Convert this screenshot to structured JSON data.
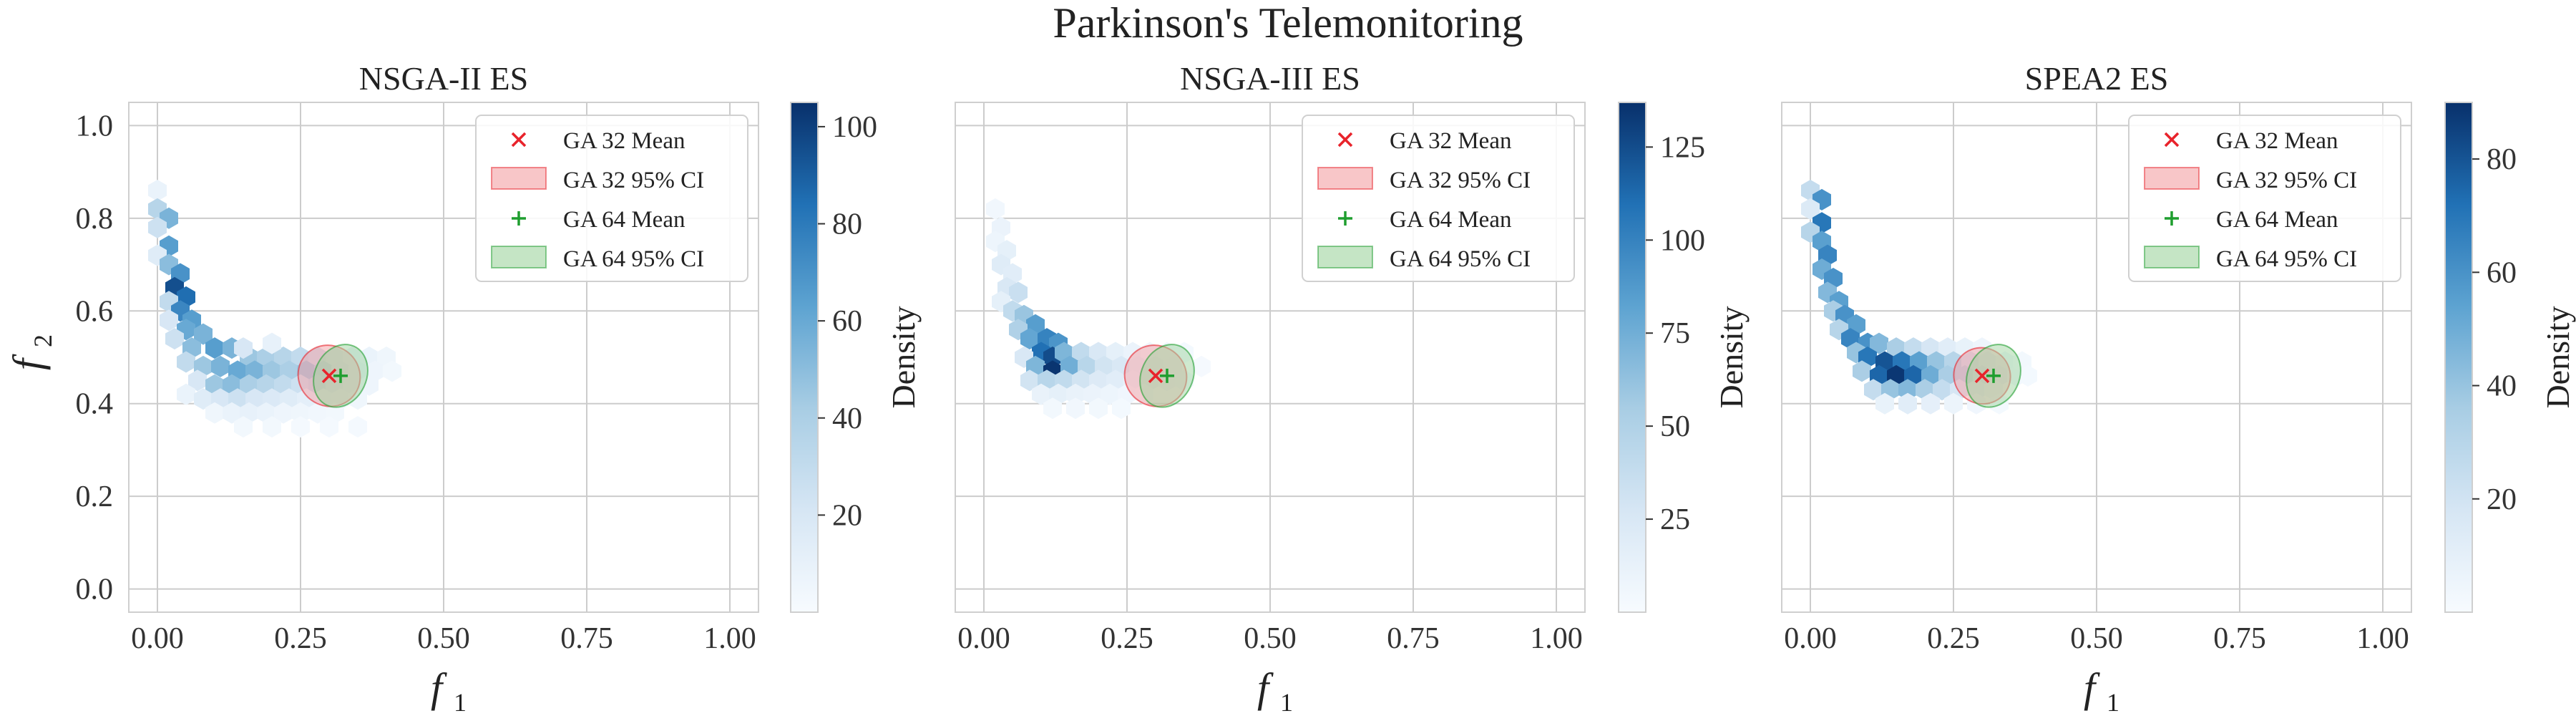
{
  "figure_title": "Parkinson's Telemonitoring",
  "colors": {
    "ga32": "#e8232b",
    "ga32_fill": "#f4a0a3",
    "ga64": "#1f9e2f",
    "ga64_fill": "#9fd39f",
    "cmap_low": "#f3f8fd",
    "cmap_high": "#0a2f6b",
    "grid": "#cccccc"
  },
  "chart_data": [
    {
      "type": "hexbin",
      "title": "NSGA-II ES",
      "xlabel": "f",
      "xlabel_sub": "1",
      "ylabel": "f",
      "ylabel_sub": "2",
      "xlim": [
        -0.05,
        1.05
      ],
      "ylim": [
        -0.05,
        1.05
      ],
      "xticks": [
        "0.00",
        "0.25",
        "0.50",
        "0.75",
        "1.00"
      ],
      "yticks": [
        "0.0",
        "0.2",
        "0.4",
        "0.6",
        "0.8",
        "1.0"
      ],
      "grid": true,
      "colorbar": {
        "label": "Density",
        "min": 0,
        "max": 105,
        "ticks": [
          "20",
          "40",
          "60",
          "80",
          "100"
        ]
      },
      "legend": {
        "position": "top-right",
        "entries": [
          "GA 32 Mean",
          "GA 32 95% CI",
          "GA 64 Mean",
          "GA 64 95% CI"
        ]
      },
      "ga32_mean": [
        0.3,
        0.46
      ],
      "ga64_mean": [
        0.32,
        0.46
      ],
      "ga32_ci": {
        "rx": 0.055,
        "ry": 0.065,
        "angle": 35
      },
      "ga64_ci": {
        "rx": 0.045,
        "ry": 0.07,
        "angle": 25
      },
      "hexbins": [
        [
          0.0,
          0.86,
          8
        ],
        [
          0.0,
          0.82,
          35
        ],
        [
          0.02,
          0.8,
          55
        ],
        [
          0.0,
          0.78,
          25
        ],
        [
          0.02,
          0.74,
          65
        ],
        [
          0.0,
          0.72,
          15
        ],
        [
          0.02,
          0.7,
          50
        ],
        [
          0.04,
          0.68,
          70
        ],
        [
          0.03,
          0.65,
          95
        ],
        [
          0.05,
          0.63,
          85
        ],
        [
          0.02,
          0.62,
          30
        ],
        [
          0.04,
          0.6,
          75
        ],
        [
          0.06,
          0.58,
          65
        ],
        [
          0.02,
          0.58,
          20
        ],
        [
          0.05,
          0.56,
          60
        ],
        [
          0.08,
          0.55,
          55
        ],
        [
          0.03,
          0.54,
          25
        ],
        [
          0.06,
          0.52,
          50
        ],
        [
          0.1,
          0.52,
          65
        ],
        [
          0.13,
          0.52,
          55
        ],
        [
          0.16,
          0.5,
          45
        ],
        [
          0.19,
          0.5,
          40
        ],
        [
          0.22,
          0.5,
          35
        ],
        [
          0.25,
          0.5,
          30
        ],
        [
          0.28,
          0.5,
          25
        ],
        [
          0.31,
          0.5,
          18
        ],
        [
          0.34,
          0.5,
          12
        ],
        [
          0.37,
          0.5,
          8
        ],
        [
          0.4,
          0.5,
          5
        ],
        [
          0.05,
          0.49,
          30
        ],
        [
          0.08,
          0.48,
          45
        ],
        [
          0.11,
          0.48,
          55
        ],
        [
          0.14,
          0.47,
          60
        ],
        [
          0.17,
          0.47,
          55
        ],
        [
          0.2,
          0.47,
          45
        ],
        [
          0.23,
          0.47,
          40
        ],
        [
          0.26,
          0.47,
          45
        ],
        [
          0.29,
          0.47,
          35
        ],
        [
          0.32,
          0.47,
          20
        ],
        [
          0.35,
          0.47,
          12
        ],
        [
          0.38,
          0.47,
          6
        ],
        [
          0.41,
          0.47,
          3
        ],
        [
          0.07,
          0.45,
          20
        ],
        [
          0.1,
          0.44,
          45
        ],
        [
          0.13,
          0.44,
          50
        ],
        [
          0.16,
          0.44,
          40
        ],
        [
          0.19,
          0.44,
          35
        ],
        [
          0.22,
          0.44,
          30
        ],
        [
          0.25,
          0.44,
          25
        ],
        [
          0.28,
          0.44,
          30
        ],
        [
          0.31,
          0.44,
          20
        ],
        [
          0.34,
          0.44,
          12
        ],
        [
          0.37,
          0.44,
          6
        ],
        [
          0.05,
          0.42,
          8
        ],
        [
          0.08,
          0.41,
          15
        ],
        [
          0.11,
          0.41,
          20
        ],
        [
          0.14,
          0.41,
          25
        ],
        [
          0.17,
          0.41,
          20
        ],
        [
          0.2,
          0.41,
          18
        ],
        [
          0.23,
          0.41,
          15
        ],
        [
          0.26,
          0.41,
          12
        ],
        [
          0.29,
          0.41,
          10
        ],
        [
          0.32,
          0.41,
          8
        ],
        [
          0.35,
          0.41,
          5
        ],
        [
          0.1,
          0.38,
          5
        ],
        [
          0.13,
          0.38,
          8
        ],
        [
          0.16,
          0.38,
          10
        ],
        [
          0.19,
          0.38,
          8
        ],
        [
          0.22,
          0.38,
          6
        ],
        [
          0.25,
          0.38,
          5
        ],
        [
          0.28,
          0.38,
          4
        ],
        [
          0.31,
          0.38,
          3
        ],
        [
          0.15,
          0.35,
          3
        ],
        [
          0.2,
          0.35,
          3
        ],
        [
          0.25,
          0.35,
          2
        ],
        [
          0.3,
          0.35,
          2
        ],
        [
          0.35,
          0.35,
          2
        ],
        [
          0.15,
          0.52,
          20
        ],
        [
          0.2,
          0.53,
          10
        ]
      ]
    },
    {
      "type": "hexbin",
      "title": "NSGA-III ES",
      "xlabel": "f",
      "xlabel_sub": "1",
      "xlim": [
        -0.05,
        1.05
      ],
      "ylim": [
        -0.05,
        1.05
      ],
      "xticks": [
        "0.00",
        "0.25",
        "0.50",
        "0.75",
        "1.00"
      ],
      "grid": true,
      "colorbar": {
        "label": "Density",
        "min": 0,
        "max": 137,
        "ticks": [
          "25",
          "50",
          "75",
          "100",
          "125"
        ]
      },
      "legend": {
        "position": "top-right",
        "entries": [
          "GA 32 Mean",
          "GA 32 95% CI",
          "GA 64 Mean",
          "GA 64 95% CI"
        ]
      },
      "ga32_mean": [
        0.3,
        0.46
      ],
      "ga64_mean": [
        0.32,
        0.46
      ],
      "ga32_ci": {
        "rx": 0.055,
        "ry": 0.065,
        "angle": 35
      },
      "ga64_ci": {
        "rx": 0.045,
        "ry": 0.07,
        "angle": 25
      },
      "hexbins": [
        [
          0.02,
          0.82,
          5
        ],
        [
          0.03,
          0.78,
          10
        ],
        [
          0.02,
          0.75,
          8
        ],
        [
          0.04,
          0.73,
          15
        ],
        [
          0.03,
          0.7,
          20
        ],
        [
          0.05,
          0.68,
          18
        ],
        [
          0.04,
          0.65,
          25
        ],
        [
          0.06,
          0.64,
          35
        ],
        [
          0.03,
          0.62,
          15
        ],
        [
          0.05,
          0.6,
          40
        ],
        [
          0.07,
          0.59,
          60
        ],
        [
          0.09,
          0.57,
          85
        ],
        [
          0.06,
          0.56,
          50
        ],
        [
          0.08,
          0.54,
          80
        ],
        [
          0.11,
          0.54,
          100
        ],
        [
          0.13,
          0.53,
          90
        ],
        [
          0.1,
          0.51,
          110
        ],
        [
          0.12,
          0.5,
          125
        ],
        [
          0.14,
          0.51,
          70
        ],
        [
          0.17,
          0.51,
          40
        ],
        [
          0.2,
          0.51,
          25
        ],
        [
          0.23,
          0.51,
          15
        ],
        [
          0.26,
          0.51,
          10
        ],
        [
          0.29,
          0.51,
          6
        ],
        [
          0.32,
          0.51,
          4
        ],
        [
          0.07,
          0.5,
          25
        ],
        [
          0.09,
          0.48,
          70
        ],
        [
          0.12,
          0.47,
          135
        ],
        [
          0.15,
          0.48,
          75
        ],
        [
          0.18,
          0.48,
          45
        ],
        [
          0.21,
          0.48,
          30
        ],
        [
          0.24,
          0.48,
          25
        ],
        [
          0.27,
          0.48,
          15
        ],
        [
          0.3,
          0.48,
          10
        ],
        [
          0.33,
          0.48,
          5
        ],
        [
          0.08,
          0.45,
          30
        ],
        [
          0.11,
          0.45,
          45
        ],
        [
          0.14,
          0.45,
          40
        ],
        [
          0.17,
          0.45,
          30
        ],
        [
          0.2,
          0.45,
          22
        ],
        [
          0.23,
          0.45,
          18
        ],
        [
          0.26,
          0.45,
          12
        ],
        [
          0.29,
          0.45,
          10
        ],
        [
          0.32,
          0.45,
          6
        ],
        [
          0.35,
          0.45,
          3
        ],
        [
          0.1,
          0.42,
          12
        ],
        [
          0.13,
          0.42,
          15
        ],
        [
          0.16,
          0.42,
          12
        ],
        [
          0.19,
          0.42,
          10
        ],
        [
          0.22,
          0.42,
          8
        ],
        [
          0.25,
          0.42,
          6
        ],
        [
          0.28,
          0.42,
          4
        ],
        [
          0.12,
          0.39,
          4
        ],
        [
          0.16,
          0.39,
          5
        ],
        [
          0.2,
          0.39,
          4
        ],
        [
          0.24,
          0.39,
          3
        ],
        [
          0.35,
          0.51,
          3
        ],
        [
          0.38,
          0.48,
          2
        ]
      ]
    },
    {
      "type": "hexbin",
      "title": "SPEA2 ES",
      "xlabel": "f",
      "xlabel_sub": "1",
      "xlim": [
        -0.05,
        1.05
      ],
      "ylim": [
        -0.05,
        1.05
      ],
      "xticks": [
        "0.00",
        "0.25",
        "0.50",
        "0.75",
        "1.00"
      ],
      "grid": true,
      "colorbar": {
        "label": "Density",
        "min": 0,
        "max": 90,
        "ticks": [
          "20",
          "40",
          "60",
          "80"
        ]
      },
      "legend": {
        "position": "top-right",
        "entries": [
          "GA 32 Mean",
          "GA 32 95% CI",
          "GA 64 Mean",
          "GA 64 95% CI"
        ]
      },
      "ga32_mean": [
        0.3,
        0.46
      ],
      "ga64_mean": [
        0.32,
        0.46
      ],
      "ga32_ci": {
        "rx": 0.05,
        "ry": 0.06,
        "angle": 35
      },
      "ga64_ci": {
        "rx": 0.045,
        "ry": 0.07,
        "angle": 25
      },
      "hexbins": [
        [
          0.0,
          0.86,
          25
        ],
        [
          0.02,
          0.84,
          60
        ],
        [
          0.0,
          0.82,
          15
        ],
        [
          0.02,
          0.79,
          70
        ],
        [
          0.0,
          0.77,
          30
        ],
        [
          0.02,
          0.75,
          55
        ],
        [
          0.03,
          0.72,
          65
        ],
        [
          0.02,
          0.69,
          50
        ],
        [
          0.04,
          0.67,
          60
        ],
        [
          0.03,
          0.64,
          45
        ],
        [
          0.05,
          0.62,
          55
        ],
        [
          0.04,
          0.6,
          35
        ],
        [
          0.06,
          0.59,
          60
        ],
        [
          0.08,
          0.57,
          55
        ],
        [
          0.05,
          0.56,
          30
        ],
        [
          0.07,
          0.54,
          65
        ],
        [
          0.1,
          0.53,
          60
        ],
        [
          0.12,
          0.53,
          45
        ],
        [
          0.15,
          0.52,
          35
        ],
        [
          0.18,
          0.52,
          25
        ],
        [
          0.21,
          0.52,
          18
        ],
        [
          0.24,
          0.52,
          12
        ],
        [
          0.27,
          0.52,
          8
        ],
        [
          0.3,
          0.52,
          5
        ],
        [
          0.08,
          0.51,
          40
        ],
        [
          0.1,
          0.5,
          70
        ],
        [
          0.13,
          0.49,
          80
        ],
        [
          0.16,
          0.49,
          70
        ],
        [
          0.19,
          0.49,
          55
        ],
        [
          0.22,
          0.49,
          40
        ],
        [
          0.25,
          0.49,
          30
        ],
        [
          0.28,
          0.49,
          20
        ],
        [
          0.31,
          0.49,
          12
        ],
        [
          0.34,
          0.49,
          6
        ],
        [
          0.09,
          0.47,
          35
        ],
        [
          0.12,
          0.46,
          75
        ],
        [
          0.15,
          0.46,
          88
        ],
        [
          0.18,
          0.46,
          75
        ],
        [
          0.21,
          0.46,
          50
        ],
        [
          0.24,
          0.46,
          35
        ],
        [
          0.27,
          0.46,
          30
        ],
        [
          0.3,
          0.46,
          20
        ],
        [
          0.33,
          0.46,
          10
        ],
        [
          0.36,
          0.46,
          4
        ],
        [
          0.11,
          0.43,
          25
        ],
        [
          0.14,
          0.43,
          40
        ],
        [
          0.17,
          0.43,
          45
        ],
        [
          0.2,
          0.43,
          35
        ],
        [
          0.23,
          0.43,
          25
        ],
        [
          0.26,
          0.43,
          18
        ],
        [
          0.29,
          0.43,
          12
        ],
        [
          0.32,
          0.43,
          6
        ],
        [
          0.13,
          0.4,
          8
        ],
        [
          0.17,
          0.4,
          12
        ],
        [
          0.21,
          0.4,
          10
        ],
        [
          0.25,
          0.4,
          6
        ],
        [
          0.29,
          0.4,
          4
        ],
        [
          0.33,
          0.4,
          2
        ],
        [
          0.37,
          0.49,
          3
        ],
        [
          0.38,
          0.46,
          2
        ]
      ]
    }
  ]
}
